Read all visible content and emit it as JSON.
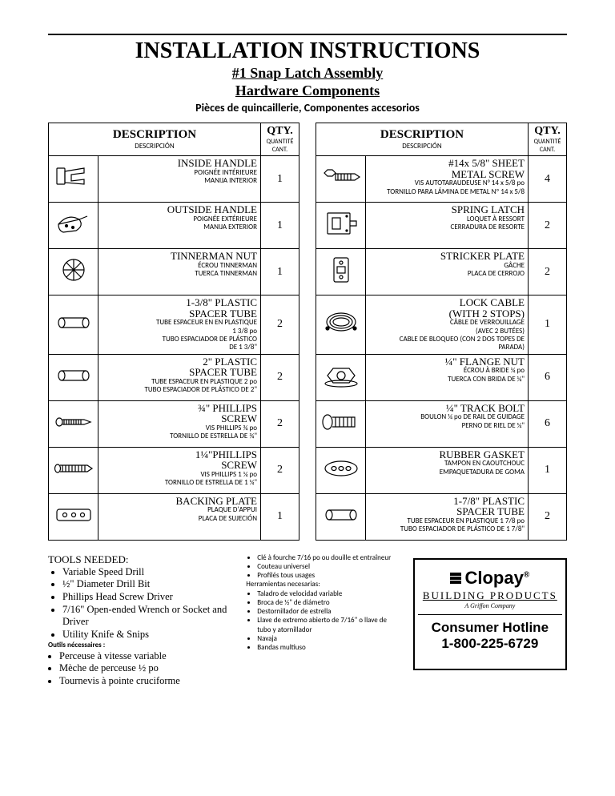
{
  "header": {
    "title": "INSTALLATION INSTRUCTIONS",
    "subtitle1": "#1 Snap Latch Assembly",
    "subtitle2": "Hardware Components",
    "subtitle_lang": "Pièces de quincaillerie,  Componentes accesorios"
  },
  "table_headers": {
    "desc": "DESCRIPTION",
    "desc_sub": "DESCRIPCIÓN",
    "qty": "QTY.",
    "qty_sub1": "QUANTITÉ",
    "qty_sub2": "CANT."
  },
  "left": [
    {
      "en": "INSIDE HANDLE",
      "fr": "POIGNÉE INTÉRIEURE",
      "es": "MANIJA INTERIOR",
      "qty": "1",
      "icon": "inside-handle"
    },
    {
      "en": "OUTSIDE HANDLE",
      "fr": "POIGNÉE EXTÉRIEURE",
      "es": "MANIJA EXTERIOR",
      "qty": "1",
      "icon": "outside-handle"
    },
    {
      "en": "TINNERMAN NUT",
      "fr": "ÉCROU TINNERMAN",
      "es": "TUERCA TINNERMAN",
      "qty": "1",
      "icon": "tinnerman"
    },
    {
      "en": "1-3/8\" PLASTIC\nSPACER TUBE",
      "fr": "TUBE ESPACEUR EN EN PLASTIQUE\n1 3/8 po",
      "es": "TUBO ESPACIADOR DE PLÁSTICO\nDE 1 3/8\"",
      "qty": "2",
      "icon": "tube"
    },
    {
      "en": "2\" PLASTIC\nSPACER TUBE",
      "fr": "TUBE ESPACEUR EN PLASTIQUE 2 po",
      "es": "TUBO ESPACIADOR DE PLÁSTICO DE 2\"",
      "qty": "2",
      "icon": "tube"
    },
    {
      "en": "¾\" PHILLIPS\nSCREW",
      "fr": "VIS PHILLIPS ¾ po",
      "es": "TORNILLO DE ESTRELLA DE ¾\"",
      "qty": "2",
      "icon": "phillips"
    },
    {
      "en": "1¼\"PHILLIPS\nSCREW",
      "fr": "VIS PHILLIPS 1 ¼ po",
      "es": "TORNILLO DE ESTRELLA DE 1 ¼\"",
      "qty": "2",
      "icon": "phillips-long"
    },
    {
      "en": "BACKING PLATE",
      "fr": "PLAQUE D'APPUI",
      "es": "PLACA DE SUJECIÓN",
      "qty": "1",
      "icon": "backing-plate"
    }
  ],
  "right": [
    {
      "en": "#14x 5/8\" SHEET\nMETAL SCREW",
      "fr": "VIS AUTOTARAUDEUSE N° 14 x 5/8 po",
      "es": "TORNILLO PARA LÁMINA DE METAL Nº 14 x 5/8",
      "qty": "4",
      "icon": "sheet-screw"
    },
    {
      "en": "SPRING LATCH",
      "fr": "LOQUET À RESSORT",
      "es": "CERRADURA DE RESORTE",
      "qty": "2",
      "icon": "spring-latch"
    },
    {
      "en": "STRICKER PLATE",
      "fr": "GÂCHE",
      "es": "PLACA DE CERROJO",
      "qty": "2",
      "icon": "striker"
    },
    {
      "en": "LOCK CABLE\n(WITH 2 STOPS)",
      "fr": "CÂBLE DE VERROUILLAGE\n(AVEC 2 BUTÉES)",
      "es": "CABLE DE BLOQUEO (CON 2 DOS TOPES DE\nPARADA)",
      "qty": "1",
      "icon": "cable"
    },
    {
      "en": "¼\" FLANGE NUT",
      "fr": "ÉCROU À BRIDE ¼ po",
      "es": "TUERCA CON BRIDA DE ¼\"",
      "qty": "6",
      "icon": "flange-nut"
    },
    {
      "en": "¼\" TRACK BOLT",
      "fr": "BOULON ¼ po DE RAIL DE GUIDAGE",
      "es": "PERNO DE RIEL DE ¼\"",
      "qty": "6",
      "icon": "track-bolt"
    },
    {
      "en": "RUBBER GASKET",
      "fr": "TAMPON EN CAOUTCHOUC",
      "es": "EMPAQUETADURA DE GOMA",
      "qty": "1",
      "icon": "gasket"
    },
    {
      "en": "1-7/8\" PLASTIC\nSPACER TUBE",
      "fr": "TUBE ESPACEUR EN PLASTIQUE 1 7/8 po",
      "es": "TUBO ESPACIADOR DE PLÁSTICO DE 1 7/8\"",
      "qty": "2",
      "icon": "tube"
    }
  ],
  "tools": {
    "heading_en": "TOOLS NEEDED:",
    "list_en": [
      "Variable Speed Drill",
      "½\" Diameter Drill Bit",
      "Phillips Head Screw Driver",
      "7/16\" Open-ended Wrench or Socket and Driver",
      "Utility Knife & Snips"
    ],
    "heading_fr": "Outils nécessaires :",
    "list_fr": [
      "Perceuse à vitesse variable",
      "Mèche de perceuse ½ po",
      "Tournevis à pointe cruciforme"
    ],
    "list_col2_fr": [
      "Clé à fourche 7/16 po ou douille et entraîneur",
      "Couteau universel",
      "Profilés tous usages"
    ],
    "heading_es": "Herramientas necesarias:",
    "list_es": [
      "Taladro de velocidad variable",
      "Broca de ½\" de diámetro",
      "Destornillador de estrella",
      "Llave de extremo abierto de 7/16\" o llave de tubo y atornillador",
      "Navaja",
      "Bandas multiuso"
    ]
  },
  "brand": {
    "name": "Clopay",
    "reg": "®",
    "line2": "BUILDING PRODUCTS",
    "line3": "A Griffon Company",
    "hotline1": "Consumer Hotline",
    "hotline2": "1-800-225-6729"
  }
}
